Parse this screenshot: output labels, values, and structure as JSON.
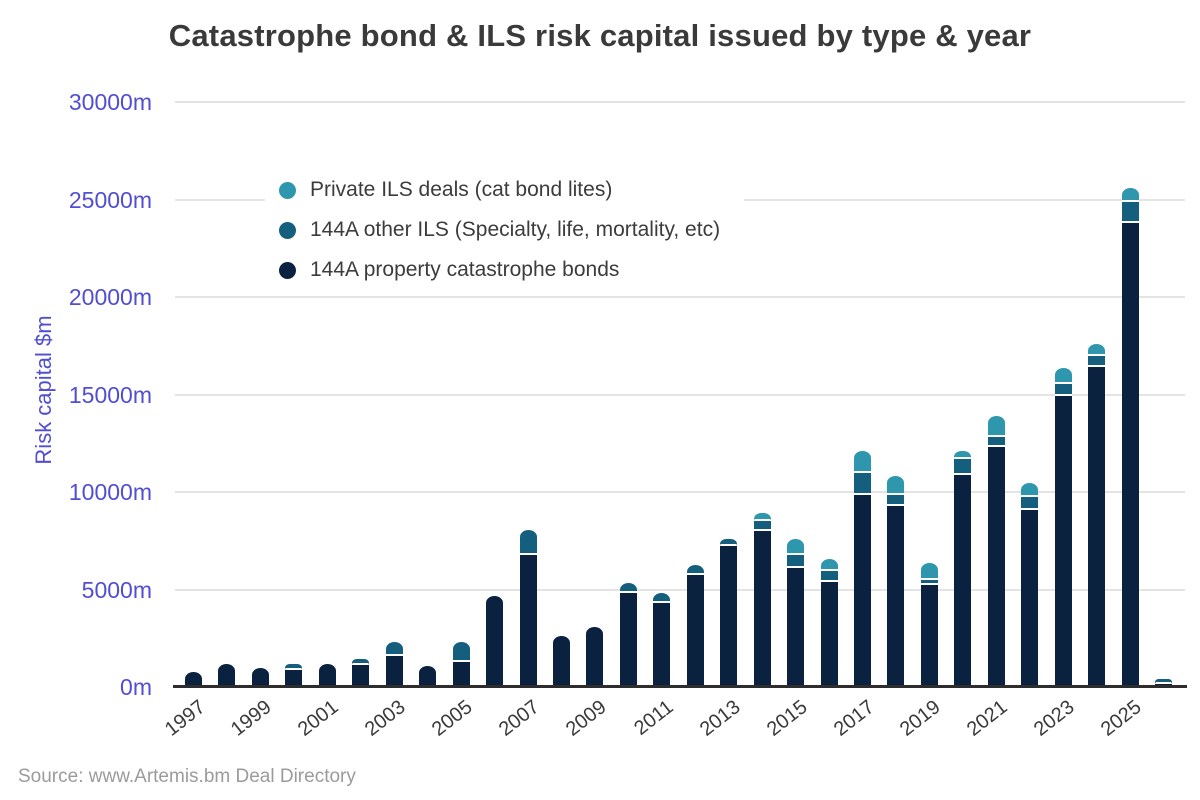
{
  "source": "Source: www.Artemis.bm Deal Directory",
  "colors": {
    "private_ils": "#2f97ad",
    "other_ils": "#155f7e",
    "property_cat_bonds": "#0a2140",
    "axis_label": "#514ed2",
    "title_text": "#3a3a3a",
    "gridline": "#e4e4e4",
    "axis_line": "#2d2d2d",
    "source_text": "#9b9b9b"
  },
  "chart_data": {
    "type": "bar",
    "stacked": true,
    "title": "Catastrophe bond & ILS risk capital issued by type & year",
    "xlabel": "",
    "ylabel": "Risk capital $m",
    "ylim": [
      0,
      30000
    ],
    "y_ticks": [
      0,
      5000,
      10000,
      15000,
      20000,
      25000,
      30000
    ],
    "y_tick_suffix": "m",
    "grid": true,
    "legend_position": "upper-left-inside",
    "categories": [
      1997,
      1998,
      1999,
      2000,
      2001,
      2002,
      2003,
      2004,
      2005,
      2006,
      2007,
      2008,
      2009,
      2010,
      2011,
      2012,
      2013,
      2014,
      2015,
      2016,
      2017,
      2018,
      2019,
      2020,
      2021,
      2022,
      2023,
      2024,
      2025,
      2026
    ],
    "x_tick_years": [
      1997,
      1999,
      2001,
      2003,
      2005,
      2007,
      2009,
      2011,
      2013,
      2015,
      2017,
      2019,
      2021,
      2023,
      2025
    ],
    "series": [
      {
        "name": "Private ILS deals (cat bond lites)",
        "color": "#2f97ad",
        "values": [
          0,
          0,
          0,
          0,
          0,
          0,
          0,
          0,
          0,
          0,
          0,
          0,
          0,
          0,
          0,
          0,
          0,
          310,
          735,
          510,
          1030,
          870,
          770,
          300,
          975,
          620,
          705,
          530,
          620,
          0
        ]
      },
      {
        "name": "144A other ILS (Specialty, life, mortality, etc)",
        "color": "#155f7e",
        "values": [
          0,
          0,
          0,
          210,
          0,
          205,
          625,
          0,
          920,
          0,
          1200,
          0,
          0,
          395,
          395,
          425,
          270,
          510,
          635,
          550,
          1130,
          595,
          290,
          830,
          495,
          655,
          655,
          585,
          1060,
          150
        ]
      },
      {
        "name": "144A property catastrophe bonds",
        "color": "#0a2140",
        "values": [
          770,
          1190,
          975,
          975,
          1195,
          1225,
          1700,
          1060,
          1380,
          4670,
          6860,
          2620,
          3080,
          4925,
          4415,
          5835,
          7325,
          8110,
          6225,
          5490,
          9950,
          9370,
          5320,
          10950,
          12425,
          9170,
          15010,
          16495,
          23895,
          250
        ]
      }
    ]
  }
}
